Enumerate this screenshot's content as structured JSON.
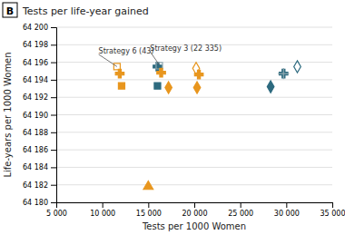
{
  "chart_data": {
    "type": "scatter",
    "title": "Tests per life-year gained",
    "xlabel": "Tests per 1000 Women",
    "ylabel": "Life-years per 1000 Women",
    "xlim": [
      5000,
      35000
    ],
    "ylim": [
      64180,
      64200
    ],
    "xticks": [
      {
        "value": 5000,
        "label": "5 000"
      },
      {
        "value": 10000,
        "label": "10 000"
      },
      {
        "value": 15000,
        "label": "15 000"
      },
      {
        "value": 20000,
        "label": "20 000"
      },
      {
        "value": 25000,
        "label": "25 000"
      },
      {
        "value": 30000,
        "label": "30 000"
      },
      {
        "value": 35000,
        "label": "35 000"
      }
    ],
    "yticks": [
      {
        "value": 64180,
        "label": "64 180"
      },
      {
        "value": 64182,
        "label": "64 182"
      },
      {
        "value": 64184,
        "label": "64 184"
      },
      {
        "value": 64186,
        "label": "64 186"
      },
      {
        "value": 64188,
        "label": "64 188"
      },
      {
        "value": 64190,
        "label": "64 190"
      },
      {
        "value": 64192,
        "label": "64 192"
      },
      {
        "value": 64194,
        "label": "64 194"
      },
      {
        "value": 64196,
        "label": "64 196"
      },
      {
        "value": 64198,
        "label": "64 198"
      },
      {
        "value": 64200,
        "label": "64 200"
      }
    ],
    "grid": "y",
    "series": [
      {
        "x": [
          11600
        ],
        "values": [
          64195.5
        ],
        "marker": "square-open",
        "color": "#E8961E"
      },
      {
        "x": [
          11900
        ],
        "values": [
          64194.7
        ],
        "marker": "plus-filled",
        "color": "#E8961E"
      },
      {
        "x": [
          12100
        ],
        "values": [
          64193.3
        ],
        "marker": "square",
        "color": "#E8961E"
      },
      {
        "x": [
          16000
        ],
        "values": [
          64195.5
        ],
        "marker": "plus-filled",
        "color": "#2D6A7F"
      },
      {
        "x": [
          16200
        ],
        "values": [
          64195.6
        ],
        "marker": "square-open",
        "color": "#8FA8B0"
      },
      {
        "x": [
          16400
        ],
        "values": [
          64194.8
        ],
        "marker": "plus-filled",
        "color": "#E8961E"
      },
      {
        "x": [
          16000
        ],
        "values": [
          64193.3
        ],
        "marker": "square",
        "color": "#2D6A7F"
      },
      {
        "x": [
          17200
        ],
        "values": [
          64193.1
        ],
        "marker": "diamond",
        "color": "#E8961E"
      },
      {
        "x": [
          20200
        ],
        "values": [
          64195.3
        ],
        "marker": "diamond-open",
        "color": "#E8961E"
      },
      {
        "x": [
          20500
        ],
        "values": [
          64194.6
        ],
        "marker": "plus-filled",
        "color": "#E8961E"
      },
      {
        "x": [
          20300
        ],
        "values": [
          64193.1
        ],
        "marker": "diamond",
        "color": "#E8961E"
      },
      {
        "x": [
          28300
        ],
        "values": [
          64193.2
        ],
        "marker": "diamond",
        "color": "#2D6A7F"
      },
      {
        "x": [
          29700
        ],
        "values": [
          64194.7
        ],
        "marker": "plus-filled",
        "color": "#2D6A7F"
      },
      {
        "x": [
          31200
        ],
        "values": [
          64195.5
        ],
        "marker": "diamond-open",
        "color": "#2D6A7F"
      },
      {
        "x": [
          29700
        ],
        "values": [
          64194.7
        ],
        "marker": "plus",
        "color": "#8FA8B0"
      },
      {
        "x": [
          15000
        ],
        "values": [
          64181.8
        ],
        "marker": "triangle",
        "color": "#E8961E"
      }
    ],
    "annotations": [
      {
        "text": "B"
      },
      {
        "text": "Strategy 6 (43)",
        "x": 11600,
        "y": 64195.5,
        "text_x": 9600,
        "text_y": 64196.9
      },
      {
        "text": "Strategy 3 (22 335)",
        "x": 16200,
        "y": 64195.7,
        "text_x": 15200,
        "text_y": 64197.2
      }
    ]
  }
}
